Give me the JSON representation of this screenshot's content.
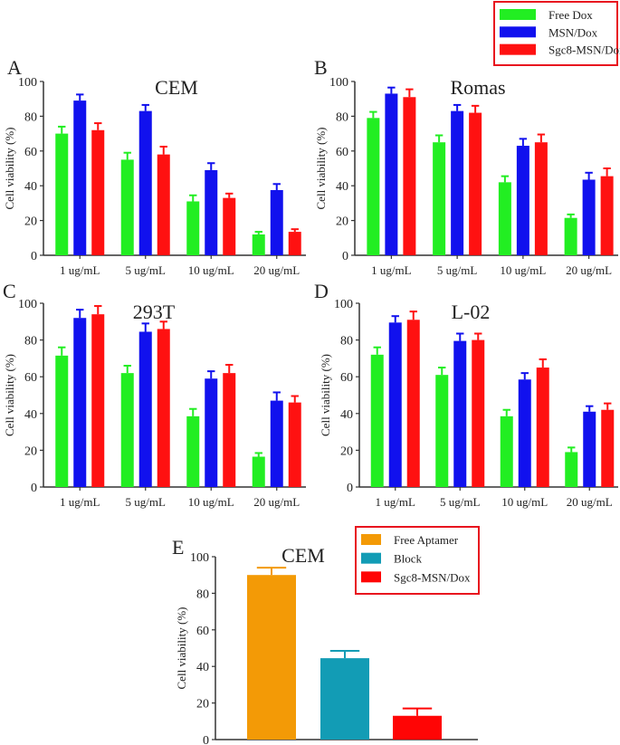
{
  "legend_top": {
    "entries": [
      {
        "name": "Free Dox",
        "color": "#22ee22"
      },
      {
        "name": "MSN/Dox",
        "color": "#1111ee"
      },
      {
        "name": "Sgc8-MSN/Dox",
        "color": "#ff1111"
      }
    ],
    "border_color": "#e8141e"
  },
  "legend_e": {
    "entries": [
      {
        "name": "Free Aptamer",
        "color": "#f39a06"
      },
      {
        "name": "Block",
        "color": "#129cb5"
      },
      {
        "name": "Sgc8-MSN/Dox",
        "color": "#ff0505"
      }
    ],
    "border_color": "#e8141e"
  },
  "chart_data": [
    {
      "panel": "A",
      "type": "bar",
      "title": "CEM",
      "ylabel": "Cell viability (%)",
      "ylim": [
        0,
        100
      ],
      "yticks": [
        "0",
        "20",
        "40",
        "60",
        "80",
        "100"
      ],
      "categories": [
        "1 ug/mL",
        "5 ug/mL",
        "10 ug/mL",
        "20 ug/mL"
      ],
      "series": [
        {
          "name": "Free Dox",
          "values": [
            70,
            55,
            31,
            12
          ],
          "errors": [
            4,
            4,
            3.5,
            1.5
          ]
        },
        {
          "name": "MSN/Dox",
          "values": [
            89,
            83,
            49,
            37.5
          ],
          "errors": [
            3.5,
            3.5,
            4,
            3.5
          ]
        },
        {
          "name": "Sgc8-MSN/Dox",
          "values": [
            72,
            58,
            33,
            13.5
          ],
          "errors": [
            4,
            4.5,
            2.5,
            1.5
          ]
        }
      ]
    },
    {
      "panel": "B",
      "type": "bar",
      "title": "Romas",
      "ylabel": "Cell viability (%)",
      "ylim": [
        0,
        100
      ],
      "yticks": [
        "0",
        "20",
        "40",
        "60",
        "80",
        "100"
      ],
      "categories": [
        "1 ug/mL",
        "5 ug/mL",
        "10 ug/mL",
        "20 ug/mL"
      ],
      "series": [
        {
          "name": "Free Dox",
          "values": [
            79,
            65,
            42,
            21.5
          ],
          "errors": [
            3.5,
            4,
            3.5,
            2
          ]
        },
        {
          "name": "MSN/Dox",
          "values": [
            93,
            83,
            63,
            43.5
          ],
          "errors": [
            3.5,
            3.5,
            4,
            4
          ]
        },
        {
          "name": "Sgc8-MSN/Dox",
          "values": [
            91,
            82,
            65,
            45.5
          ],
          "errors": [
            4.5,
            4,
            4.5,
            4.5
          ]
        }
      ]
    },
    {
      "panel": "C",
      "type": "bar",
      "title": "293T",
      "ylabel": "Cell viability (%)",
      "ylim": [
        0,
        100
      ],
      "yticks": [
        "0",
        "20",
        "40",
        "60",
        "80",
        "100"
      ],
      "categories": [
        "1 ug/mL",
        "5 ug/mL",
        "10 ug/mL",
        "20 ug/mL"
      ],
      "series": [
        {
          "name": "Free Dox",
          "values": [
            71.5,
            62,
            38.5,
            16.5
          ],
          "errors": [
            4.5,
            4,
            4,
            2
          ]
        },
        {
          "name": "MSN/Dox",
          "values": [
            92,
            84.5,
            59,
            47
          ],
          "errors": [
            4.5,
            4.5,
            4,
            4.5
          ]
        },
        {
          "name": "Sgc8-MSN/Dox",
          "values": [
            94,
            86,
            62,
            46
          ],
          "errors": [
            4.5,
            4,
            4.5,
            3.5
          ]
        }
      ]
    },
    {
      "panel": "D",
      "type": "bar",
      "title": "L-02",
      "ylabel": "Cell viability (%)",
      "ylim": [
        0,
        100
      ],
      "yticks": [
        "0",
        "20",
        "40",
        "60",
        "80",
        "100"
      ],
      "categories": [
        "1 ug/mL",
        "5 ug/mL",
        "10 ug/mL",
        "20 ug/mL"
      ],
      "series": [
        {
          "name": "Free Dox",
          "values": [
            72,
            61,
            38.5,
            19
          ],
          "errors": [
            4,
            4,
            3.5,
            2.5
          ]
        },
        {
          "name": "MSN/Dox",
          "values": [
            89.5,
            79.5,
            58.5,
            41
          ],
          "errors": [
            3.5,
            4,
            3.5,
            3
          ]
        },
        {
          "name": "Sgc8-MSN/Dox",
          "values": [
            91,
            80,
            65,
            42
          ],
          "errors": [
            4.5,
            3.5,
            4.5,
            3.5
          ]
        }
      ]
    },
    {
      "panel": "E",
      "type": "bar",
      "title": "CEM",
      "ylabel": "Cell viability (%)",
      "ylim": [
        0,
        100
      ],
      "yticks": [
        "0",
        "20",
        "40",
        "60",
        "80",
        "100"
      ],
      "categories": [
        "Free Aptamer",
        "Block",
        "Sgc8-MSN/Dox"
      ],
      "values": [
        90,
        44.5,
        13
      ],
      "errors": [
        4,
        4,
        4
      ]
    }
  ]
}
